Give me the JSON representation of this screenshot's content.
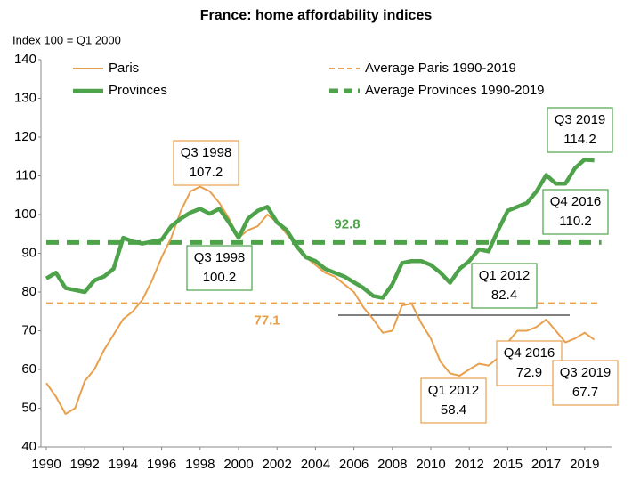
{
  "chart_data": {
    "type": "line",
    "title": "France: home affordability indices",
    "y_axis_label": "Index 100 = Q1 2000",
    "categories": [
      "1990",
      null,
      null,
      null,
      "1992",
      null,
      null,
      null,
      "1994",
      null,
      null,
      null,
      "1996",
      null,
      null,
      null,
      "1998",
      null,
      null,
      null,
      "2000",
      null,
      null,
      null,
      "2002",
      null,
      null,
      null,
      "2004",
      null,
      null,
      null,
      "2006",
      null,
      null,
      null,
      "2008",
      null,
      null,
      null,
      "2010",
      null,
      null,
      null,
      "2012",
      null,
      null,
      null,
      "2015",
      null,
      null,
      null,
      "2017",
      null,
      null,
      null,
      "2019",
      null
    ],
    "ylim": [
      40,
      140
    ],
    "yticks": [
      40,
      50,
      60,
      70,
      80,
      90,
      100,
      110,
      120,
      130,
      140
    ],
    "grid": false,
    "series": [
      {
        "name": "Paris",
        "color": "#E8A04C",
        "values": [
          56.5,
          53,
          48.5,
          50,
          57,
          60,
          65,
          69,
          73,
          75,
          78,
          83,
          89,
          94,
          101,
          106,
          107.2,
          106,
          103,
          99,
          94,
          96,
          97,
          100,
          98,
          95,
          92,
          89,
          87,
          85,
          84,
          82,
          80,
          76,
          73,
          69.5,
          70,
          76.5,
          77,
          72,
          68,
          62,
          59,
          58.4,
          60,
          61.5,
          61,
          63,
          67,
          70,
          70,
          71,
          72.9,
          70,
          67,
          68,
          69.5,
          67.7
        ],
        "annotations": [
          {
            "period": "Q3 1998",
            "value": 107.2
          },
          {
            "period": "Q1 2012",
            "value": 58.4
          },
          {
            "period": "Q4 2016",
            "value": 72.9
          },
          {
            "period": "Q3 2019",
            "value": 67.7
          }
        ]
      },
      {
        "name": "Provinces",
        "color": "#4EA24A",
        "values": [
          83.5,
          85,
          81,
          80.5,
          80,
          83,
          84,
          86,
          94,
          93,
          92.5,
          93,
          93.5,
          97,
          99,
          100.5,
          101.5,
          100.2,
          101.5,
          98,
          94,
          99,
          101,
          102,
          98,
          96,
          92,
          89,
          88,
          86,
          85,
          84,
          82.5,
          81,
          79,
          78.5,
          82,
          87.5,
          88,
          88,
          87,
          85,
          82.4,
          86,
          88,
          91,
          90.5,
          96,
          101,
          102,
          103,
          106,
          110.2,
          108,
          108,
          112,
          114.2,
          114
        ],
        "annotations": [
          {
            "period": "Q3 1998",
            "value": 100.2
          },
          {
            "period": "Q1 2012",
            "value": 82.4
          },
          {
            "period": "Q4 2016",
            "value": 110.2
          },
          {
            "period": "Q3 2019",
            "value": 114.2
          }
        ]
      }
    ],
    "reference_lines": [
      {
        "name": "Average Paris 1990-2019",
        "color": "#E8A04C",
        "value": 77.1
      },
      {
        "name": "Average Provinces 1990-2019",
        "color": "#4EA24A",
        "value": 92.8
      }
    ]
  }
}
